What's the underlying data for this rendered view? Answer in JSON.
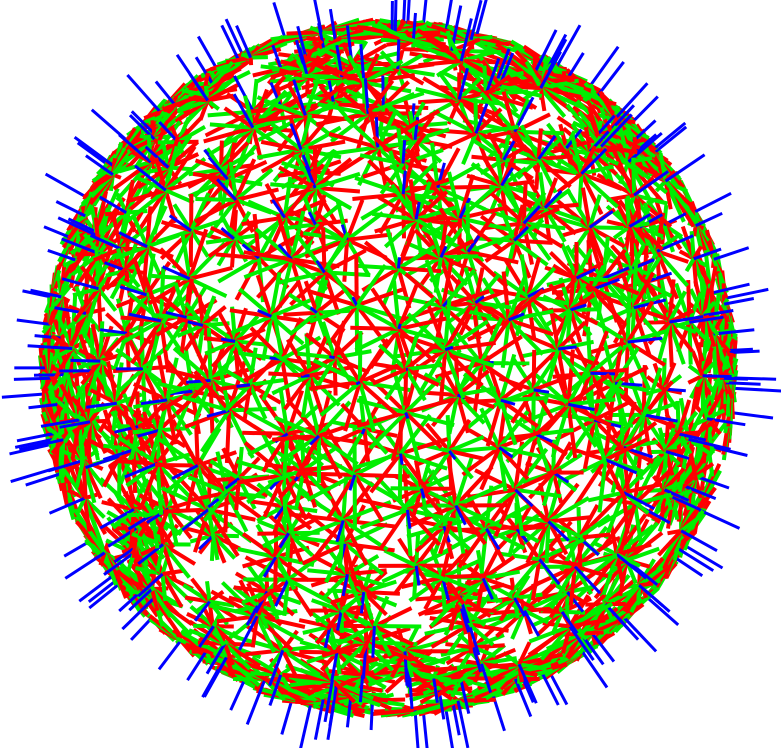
{
  "scene": {
    "subject": "sphere",
    "background_color": "#ffffff",
    "colors": {
      "tangent_u": "#ff0000",
      "tangent_v": "#00ee00",
      "normal": "#0000ff"
    },
    "random_seed": 7,
    "spike_counts": {
      "rays_per_star_min": 10,
      "rays_per_star_max": 14
    }
  }
}
